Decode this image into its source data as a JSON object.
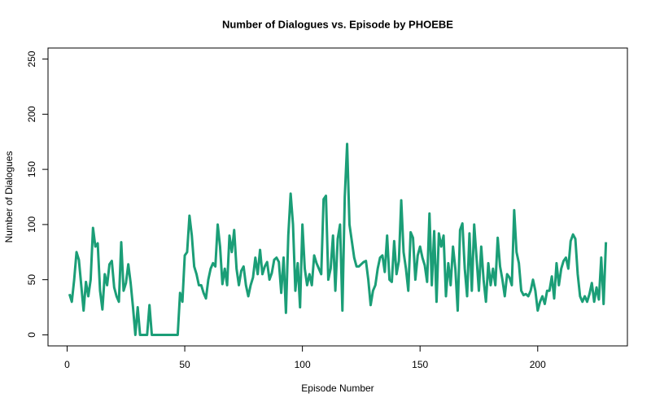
{
  "chart_data": {
    "type": "line",
    "title": "Number of Dialogues vs. Episode by PHOEBE",
    "xlabel": "Episode Number",
    "ylabel": "Number of Dialogues",
    "x": [
      1,
      2,
      3,
      4,
      5,
      6,
      7,
      8,
      9,
      10,
      11,
      12,
      13,
      14,
      15,
      16,
      17,
      18,
      19,
      20,
      21,
      22,
      23,
      24,
      25,
      26,
      27,
      28,
      29,
      30,
      31,
      32,
      33,
      34,
      35,
      36,
      37,
      38,
      39,
      40,
      41,
      42,
      43,
      44,
      45,
      46,
      47,
      48,
      49,
      50,
      51,
      52,
      53,
      54,
      55,
      56,
      57,
      58,
      59,
      60,
      61,
      62,
      63,
      64,
      65,
      66,
      67,
      68,
      69,
      70,
      71,
      72,
      73,
      74,
      75,
      76,
      77,
      78,
      79,
      80,
      81,
      82,
      83,
      84,
      85,
      86,
      87,
      88,
      89,
      90,
      91,
      92,
      93,
      94,
      95,
      96,
      97,
      98,
      99,
      100,
      101,
      102,
      103,
      104,
      105,
      106,
      107,
      108,
      109,
      110,
      111,
      112,
      113,
      114,
      115,
      116,
      117,
      118,
      119,
      120,
      121,
      122,
      123,
      124,
      125,
      126,
      127,
      128,
      129,
      130,
      131,
      132,
      133,
      134,
      135,
      136,
      137,
      138,
      139,
      140,
      141,
      142,
      143,
      144,
      145,
      146,
      147,
      148,
      149,
      150,
      151,
      152,
      153,
      154,
      155,
      156,
      157,
      158,
      159,
      160,
      161,
      162,
      163,
      164,
      165,
      166,
      167,
      168,
      169,
      170,
      171,
      172,
      173,
      174,
      175,
      176,
      177,
      178,
      179,
      180,
      181,
      182,
      183,
      184,
      185,
      186,
      187,
      188,
      189,
      190,
      191,
      192,
      193,
      194,
      195,
      196,
      197,
      198,
      199,
      200,
      201,
      202,
      203,
      204,
      205,
      206,
      207,
      208,
      209,
      210,
      211,
      212,
      213,
      214,
      215,
      216,
      217,
      218,
      219,
      220,
      221,
      222,
      223,
      224,
      225,
      226,
      227,
      228,
      229
    ],
    "series": [
      {
        "color": "#1b9e77",
        "values": [
          37,
          30,
          50,
          75,
          68,
          45,
          22,
          48,
          35,
          50,
          97,
          80,
          83,
          40,
          23,
          55,
          45,
          64,
          67,
          43,
          35,
          30,
          84,
          40,
          47,
          64,
          47,
          25,
          0,
          25,
          0,
          0,
          0,
          0,
          27,
          0,
          0,
          0,
          0,
          0,
          0,
          0,
          0,
          0,
          0,
          0,
          0,
          38,
          30,
          72,
          75,
          108,
          90,
          62,
          55,
          45,
          45,
          38,
          33,
          50,
          60,
          65,
          62,
          100,
          80,
          46,
          60,
          45,
          90,
          75,
          95,
          60,
          45,
          58,
          62,
          45,
          35,
          45,
          52,
          70,
          55,
          77,
          55,
          62,
          66,
          50,
          56,
          68,
          70,
          66,
          38,
          70,
          20,
          90,
          128,
          100,
          40,
          65,
          25,
          100,
          60,
          45,
          55,
          45,
          72,
          65,
          60,
          55,
          123,
          126,
          50,
          60,
          90,
          40,
          87,
          100,
          22,
          125,
          173,
          100,
          85,
          70,
          62,
          62,
          64,
          66,
          67,
          50,
          27,
          40,
          45,
          60,
          70,
          72,
          57,
          90,
          50,
          48,
          85,
          55,
          67,
          122,
          75,
          60,
          40,
          93,
          88,
          50,
          72,
          80,
          70,
          63,
          48,
          110,
          45,
          94,
          30,
          92,
          80,
          90,
          35,
          65,
          45,
          80,
          60,
          22,
          95,
          101,
          60,
          35,
          92,
          40,
          100,
          70,
          40,
          80,
          50,
          30,
          65,
          45,
          60,
          45,
          88,
          62,
          50,
          35,
          55,
          52,
          45,
          113,
          75,
          65,
          40,
          36,
          37,
          35,
          40,
          50,
          40,
          22,
          30,
          35,
          28,
          40,
          40,
          53,
          33,
          65,
          45,
          60,
          67,
          70,
          60,
          85,
          91,
          87,
          55,
          35,
          30,
          35,
          30,
          37,
          47,
          30,
          43,
          32,
          70,
          28,
          84
        ]
      }
    ],
    "xlim": [
      -8.12,
      238.12
    ],
    "ylim": [
      -10,
      260
    ],
    "xticks": [
      0,
      50,
      100,
      150,
      200
    ],
    "yticks": [
      0,
      50,
      100,
      150,
      200,
      250
    ]
  }
}
